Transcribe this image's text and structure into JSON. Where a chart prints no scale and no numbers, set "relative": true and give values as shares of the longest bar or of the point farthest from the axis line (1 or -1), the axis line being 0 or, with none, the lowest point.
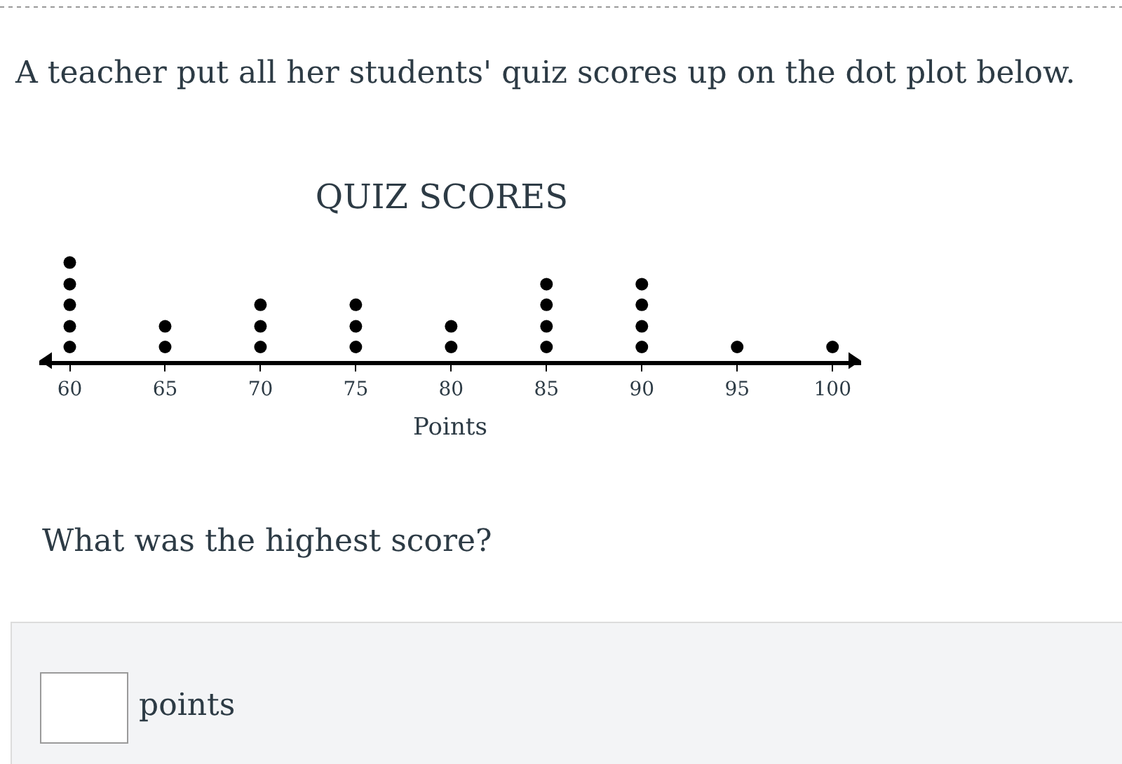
{
  "chart_data": {
    "type": "scatter",
    "title": "QUIZ SCORES",
    "xlabel": "Points",
    "annotations": [
      "A teacher put all her students' quiz scores up on the dot plot below.",
      "What was the highest score?",
      "points"
    ],
    "x": [
      60,
      60,
      60,
      60,
      60,
      65,
      65,
      70,
      70,
      70,
      75,
      75,
      75,
      80,
      80,
      85,
      85,
      85,
      85,
      90,
      90,
      90,
      90,
      95,
      100
    ],
    "values": [
      0.14,
      0.35,
      0.57,
      0.78,
      1.0,
      0.14,
      0.35,
      0.14,
      0.35,
      0.57,
      0.14,
      0.35,
      0.57,
      0.14,
      0.35,
      0.14,
      0.35,
      0.57,
      0.78,
      0.14,
      0.35,
      0.57,
      0.78,
      0.14,
      0.14
    ],
    "color": "#000000",
    "marker": "circle",
    "relative": true,
    "xlim": [
      58.4,
      101.5
    ],
    "xticks": [
      60,
      65,
      70,
      75,
      80,
      85,
      90,
      95,
      100
    ]
  }
}
